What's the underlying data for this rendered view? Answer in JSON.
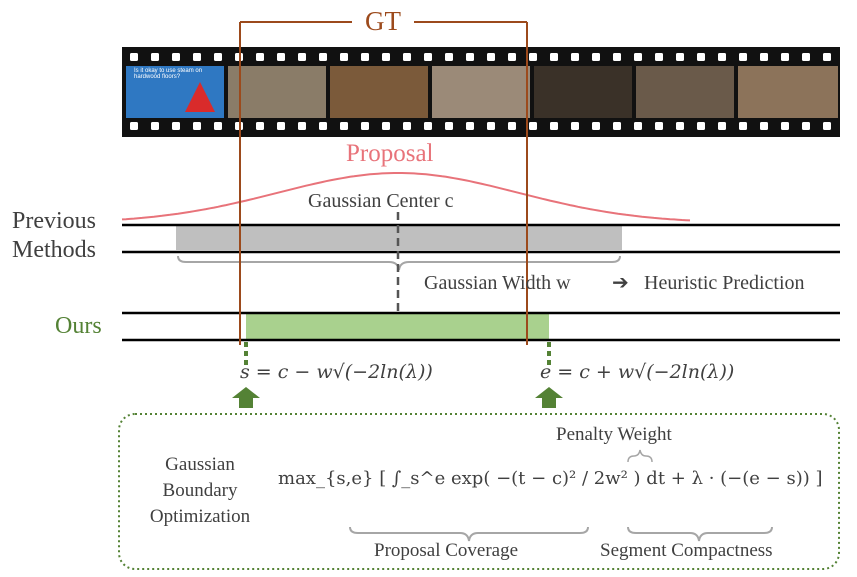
{
  "gt_label": "GT",
  "proposal_label": "Proposal",
  "previous_label_1": "Previous",
  "previous_label_2": "Methods",
  "ours_label": "Ours",
  "gaussian_center_label": "Gaussian Center c",
  "gaussian_width_label": "Gaussian Width w",
  "heuristic_label": "Heuristic Prediction",
  "start_formula": "s = c − w√(−2ln(λ))",
  "end_formula": "e = c + w√(−2ln(λ))",
  "optimization_label": [
    "Gaussian",
    "Boundary",
    "Optimization"
  ],
  "objective_formula": "max_{s,e} [ ∫_s^e exp( −(t − c)² / 2w² ) dt + λ · (−(e − s)) ]",
  "penalty_weight_label": "Penalty Weight",
  "proposal_coverage_label": "Proposal Coverage",
  "segment_compactness_label": "Segment Compactness",
  "frame_caption": "Is it okay to use steam on hardwood floors?",
  "frame_logo": "bissell",
  "colors": {
    "gt": "#9c4a1c",
    "proposal": "#e8737a",
    "ours": "#548235",
    "ours_fill": "#a9d18e",
    "prev_fill": "#bfbfbf"
  }
}
